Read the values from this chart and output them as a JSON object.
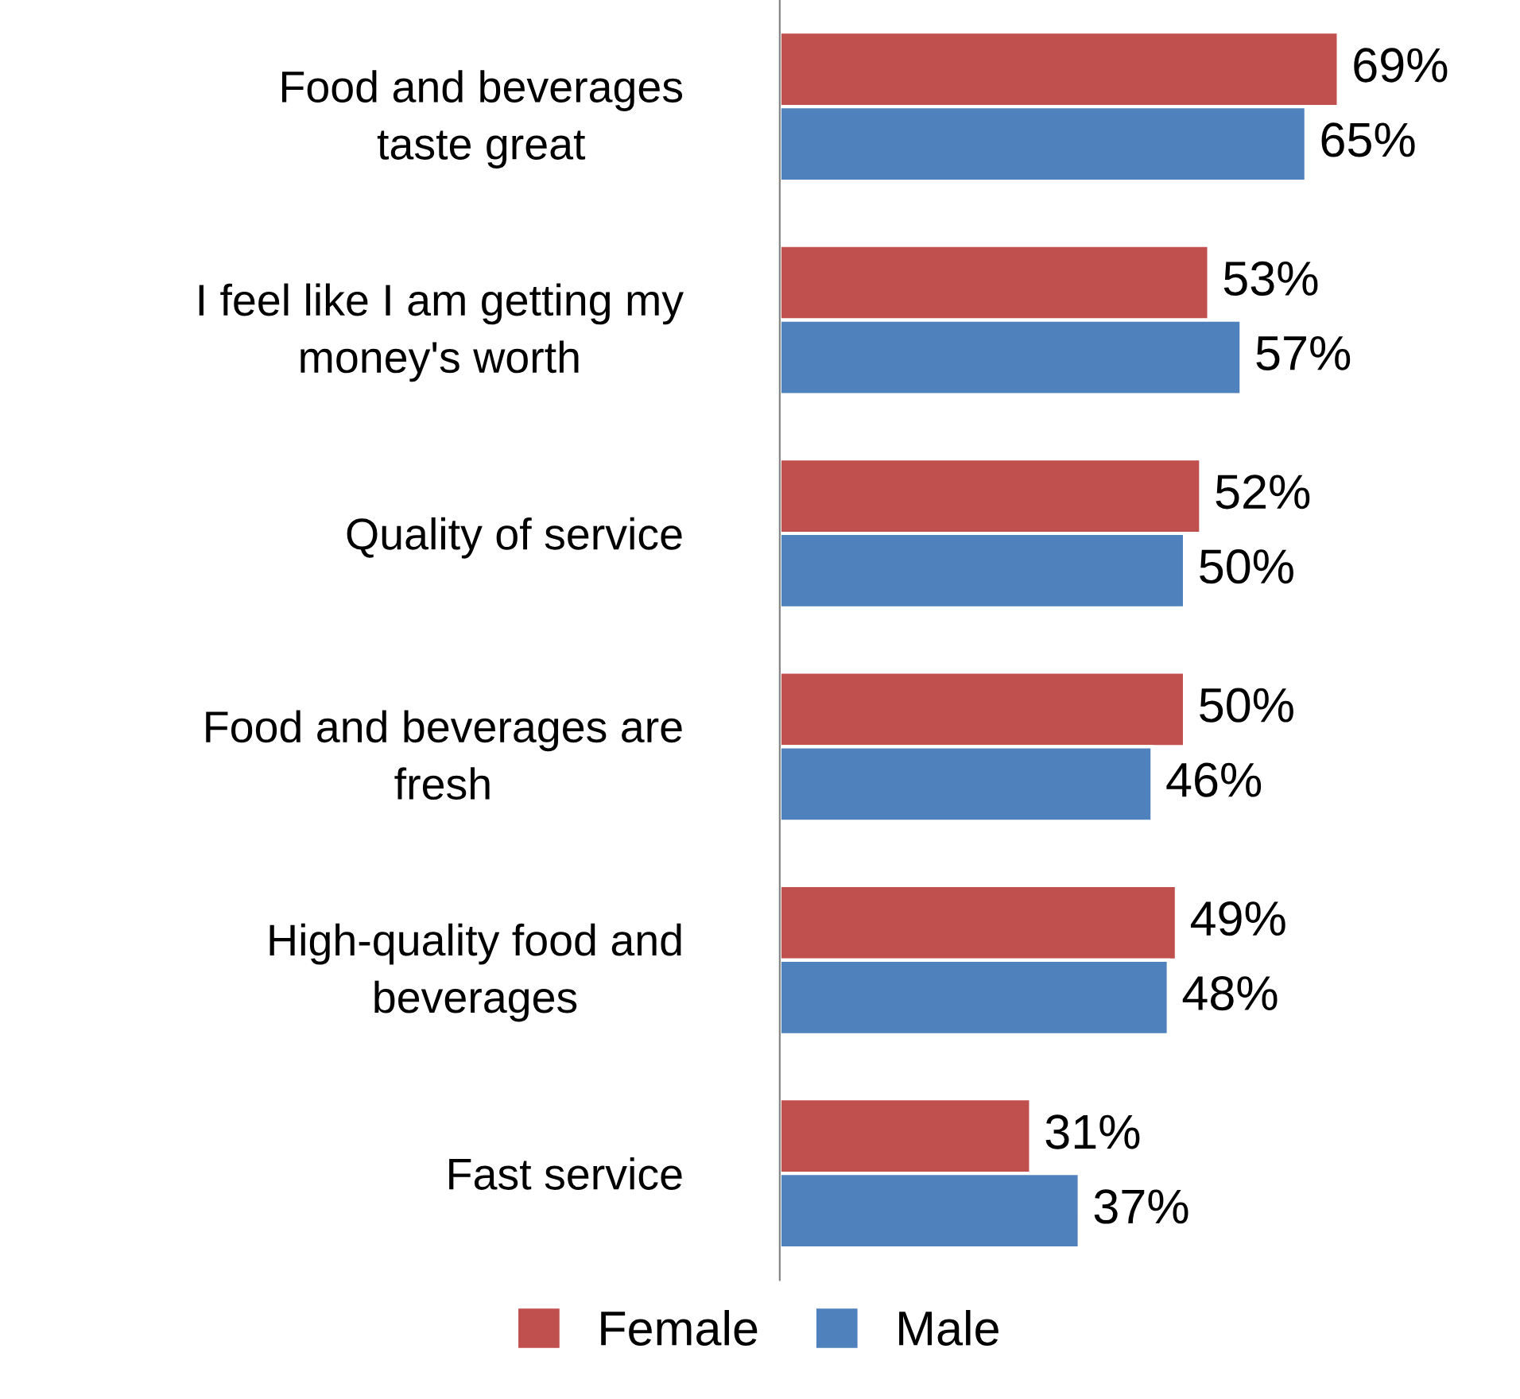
{
  "chart_data": {
    "type": "bar",
    "orientation": "horizontal",
    "categories": [
      "Food and beverages\ntaste great",
      "I feel like I am getting my\nmoney's worth",
      "Quality of service",
      "Food and beverages are\nfresh",
      "High-quality food and\nbeverages",
      "Fast service"
    ],
    "series": [
      {
        "name": "Female",
        "color": "#c0504d",
        "values": [
          69,
          53,
          52,
          50,
          49,
          31
        ],
        "value_labels": [
          "69%",
          "53%",
          "52%",
          "50%",
          "49%",
          "31%"
        ]
      },
      {
        "name": "Male",
        "color": "#4f81bd",
        "values": [
          65,
          57,
          50,
          46,
          48,
          37
        ],
        "value_labels": [
          "65%",
          "57%",
          "50%",
          "46%",
          "48%",
          "37%"
        ]
      }
    ],
    "tick_labels": "y",
    "legend": "bottom"
  }
}
